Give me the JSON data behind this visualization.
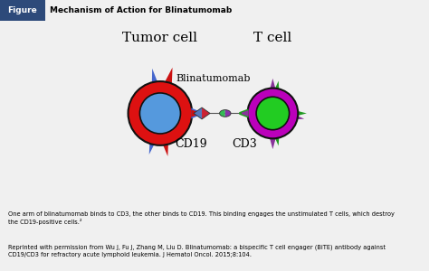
{
  "title": "Mechanism of Action for Blinatumomab",
  "title_label": "Figure",
  "tumor_cell_label": "Tumor cell",
  "t_cell_label": "T cell",
  "cd19_label": "CD19",
  "cd3_label": "CD3",
  "blinatumomab_label": "Blinatumomab",
  "caption_line1": "One arm of blinatumomab binds to CD3, the other binds to CD19. This binding engages the unstimulated T cells, which destroy",
  "caption_line2": "the CD19-positive cells.²",
  "caption_line3": "Reprinted with permission from Wu J, Fu J, Zhang M, Liu D. Blinatumomab: a bispecific T cell engager (BiTE) antibody against",
  "caption_line4": "CD19/CD3 for refractory acute lymphoid leukemia. J Hematol Oncol. 2015;8:104.",
  "bg_color": "#f0f0f0",
  "header_bg": "#2d4a7a",
  "header_text_color": "#ffffff",
  "tumor_outer_color": "#dd1111",
  "tumor_inner_color": "#5599dd",
  "tumor_border_color": "#111111",
  "t_outer_color": "#bb00bb",
  "t_inner_color": "#22cc22",
  "t_border_color": "#111111",
  "spike_color_red": "#cc1111",
  "spike_color_blue": "#4466cc",
  "spike_color_green": "#229922",
  "spike_color_purple": "#883399",
  "cd19_bind_red": "#cc2233",
  "cd19_bind_blue": "#5577bb",
  "cd3_bind_green": "#33bb55",
  "cd3_bind_purple": "#8833aa",
  "linker_color": "#555555"
}
